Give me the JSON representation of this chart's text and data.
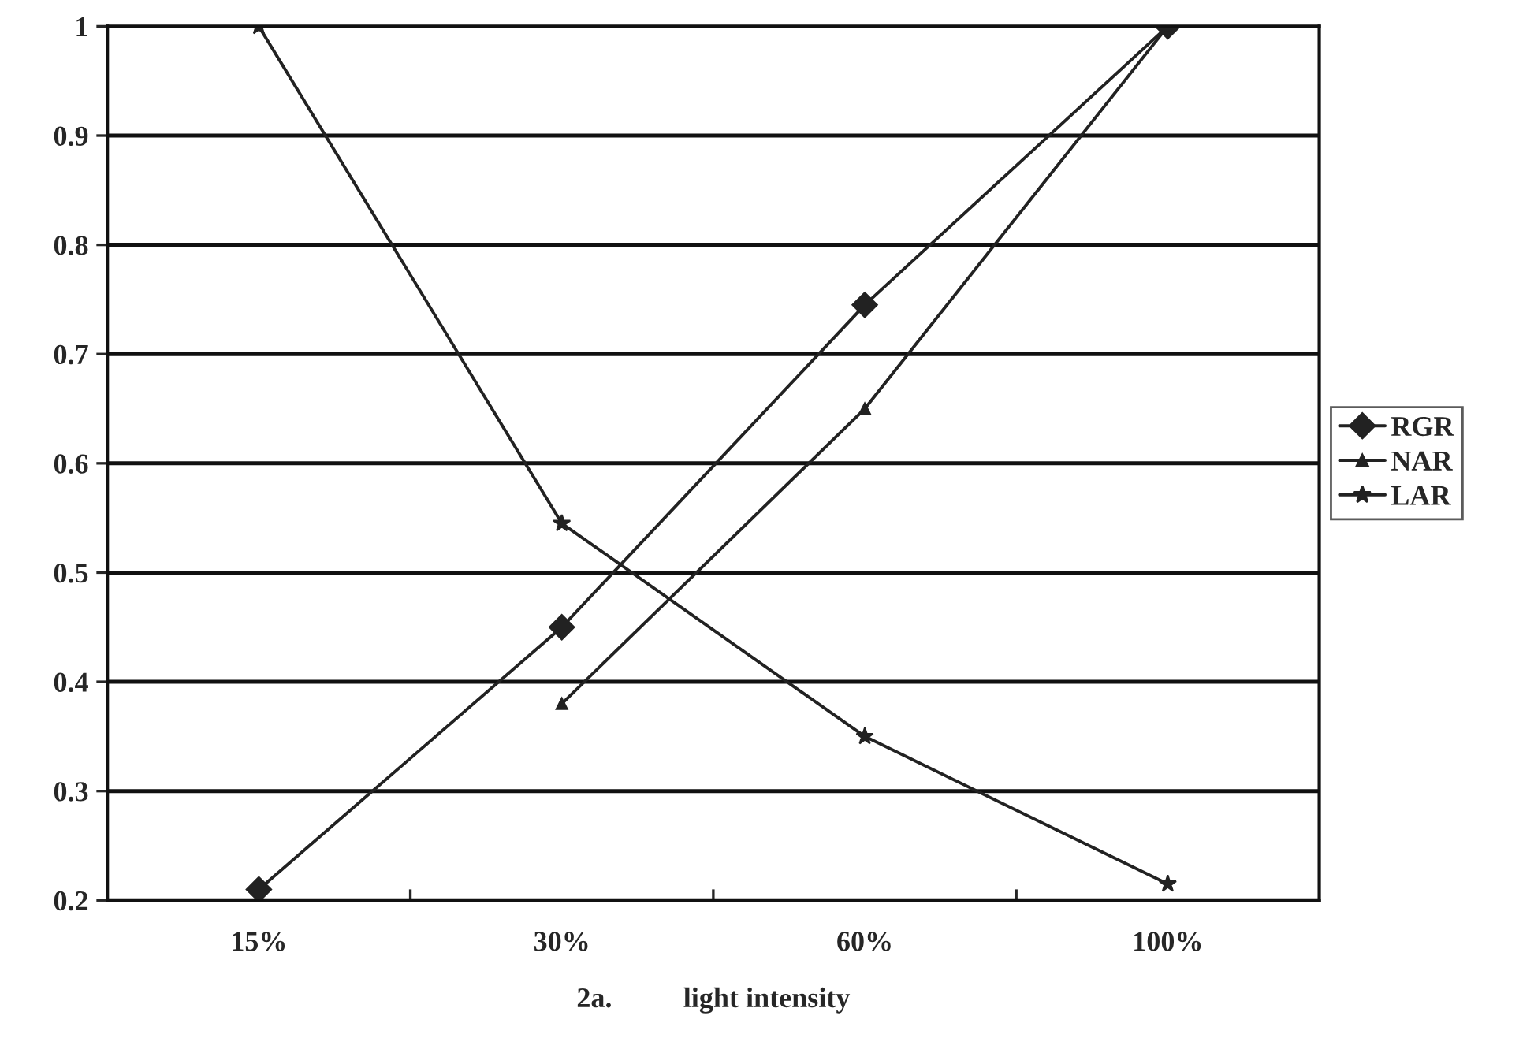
{
  "chart_data": {
    "type": "line",
    "xlabel": "2a.          light intensity",
    "categories": [
      "15%",
      "30%",
      "60%",
      "100%"
    ],
    "series": [
      {
        "name": "RGR",
        "color": "#222222",
        "marker": "diamond",
        "values": [
          0.21,
          0.45,
          0.745,
          1.0
        ]
      },
      {
        "name": "NAR",
        "color": "#222222",
        "marker": "triangle",
        "values": [
          null,
          0.38,
          0.65,
          1.0
        ]
      },
      {
        "name": "LAR",
        "color": "#222222",
        "marker": "star",
        "values": [
          1.0,
          0.545,
          0.35,
          0.215
        ]
      }
    ],
    "ylim": [
      0.2,
      1
    ],
    "yticks": [
      {
        "value": 0.2,
        "label": "0.2"
      },
      {
        "value": 0.3,
        "label": "0.3"
      },
      {
        "value": 0.4,
        "label": "0.4"
      },
      {
        "value": 0.5,
        "label": "0.5"
      },
      {
        "value": 0.6,
        "label": "0.6"
      },
      {
        "value": 0.7,
        "label": "0.7"
      },
      {
        "value": 0.8,
        "label": "0.8"
      },
      {
        "value": 0.9,
        "label": "0.9"
      },
      1
    ],
    "grid": "y",
    "legend": "right",
    "line_style": "solid"
  }
}
